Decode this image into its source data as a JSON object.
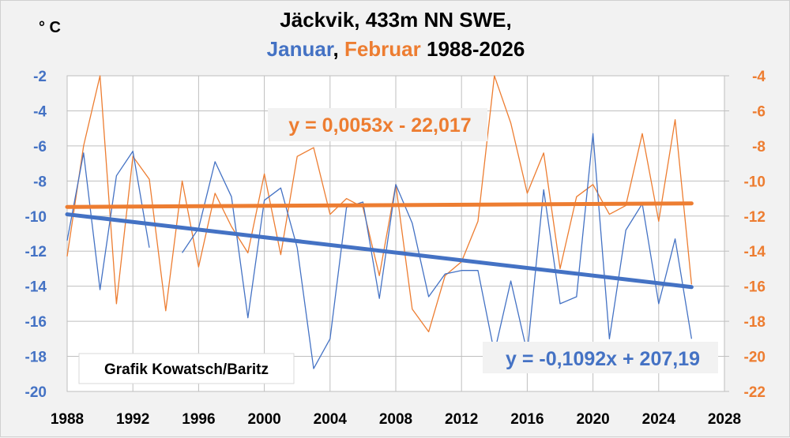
{
  "chart_data": {
    "type": "line",
    "title": "Jäckvik, 433m NN SWE,",
    "subtitle": {
      "part1": "Januar",
      "sep": ", ",
      "part2": "Februar",
      "part3": " 1988-2026"
    },
    "unit": "° C",
    "credit": "Grafik Kowatsch/Baritz",
    "xlim": [
      1988,
      2028
    ],
    "x_ticks": [
      "1988",
      "1992",
      "1996",
      "2000",
      "2004",
      "2008",
      "2012",
      "2016",
      "2020",
      "2024",
      "2028"
    ],
    "ylim_left": [
      -20,
      -2
    ],
    "y_ticks_left": [
      "-2",
      "-4",
      "-6",
      "-8",
      "-10",
      "-12",
      "-14",
      "-16",
      "-18",
      "-20"
    ],
    "ylim_right": [
      -22,
      -4
    ],
    "y_ticks_right": [
      "-4",
      "-6",
      "-8",
      "-10",
      "-12",
      "-14",
      "-16",
      "-18",
      "-20",
      "-22"
    ],
    "grid": true,
    "colors": {
      "januar": "#4472c4",
      "februar": "#ed7d31"
    },
    "x": [
      1988,
      1989,
      1990,
      1991,
      1992,
      1993,
      1994,
      1995,
      1996,
      1997,
      1998,
      1999,
      2000,
      2001,
      2002,
      2003,
      2004,
      2005,
      2006,
      2007,
      2008,
      2009,
      2010,
      2011,
      2012,
      2013,
      2014,
      2015,
      2016,
      2017,
      2018,
      2019,
      2020,
      2021,
      2022,
      2023,
      2024,
      2025,
      2026
    ],
    "series": [
      {
        "name": "Januar",
        "axis": "left",
        "values": [
          -11.4,
          -6.4,
          -14.2,
          -7.7,
          -6.3,
          -11.8,
          null,
          -12.1,
          -10.7,
          -6.9,
          -8.9,
          -15.8,
          -9.1,
          -8.4,
          -11.8,
          -18.7,
          -17.0,
          -9.5,
          -9.2,
          -14.7,
          -8.2,
          -10.4,
          -14.6,
          -13.3,
          -13.1,
          -13.1,
          -17.8,
          -13.7,
          -17.8,
          -8.5,
          -15.0,
          -14.6,
          -5.3,
          -17.0,
          -10.8,
          -9.3,
          -15.0,
          -11.3,
          -17.0
        ]
      },
      {
        "name": "Februar",
        "axis": "right",
        "values": [
          -14.3,
          -8.0,
          -4.0,
          -17.0,
          -8.6,
          -9.9,
          -17.4,
          -10.0,
          -14.9,
          -10.7,
          -12.6,
          -14.1,
          -9.6,
          -14.2,
          -8.6,
          -8.1,
          -11.9,
          -11.0,
          -11.5,
          -15.4,
          -10.2,
          -17.3,
          -18.6,
          -15.4,
          -14.6,
          -12.3,
          -4.0,
          -6.7,
          -10.7,
          -8.4,
          -15.0,
          -10.9,
          -10.2,
          -11.9,
          -11.4,
          -7.3,
          -12.3,
          -6.5,
          -15.9
        ]
      }
    ],
    "trendlines": [
      {
        "series": "Januar",
        "label": "y = -0,1092x + 207,19",
        "slope": -0.1092,
        "intercept": 207.19,
        "axis": "left"
      },
      {
        "series": "Februar",
        "label": "y = 0,0053x - 22,017",
        "slope": 0.0053,
        "intercept": -22.017,
        "axis": "right"
      }
    ]
  }
}
